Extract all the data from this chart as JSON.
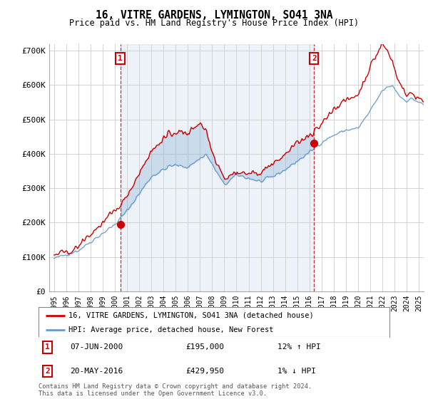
{
  "title": "16, VITRE GARDENS, LYMINGTON, SO41 3NA",
  "subtitle": "Price paid vs. HM Land Registry's House Price Index (HPI)",
  "legend_line1": "16, VITRE GARDENS, LYMINGTON, SO41 3NA (detached house)",
  "legend_line2": "HPI: Average price, detached house, New Forest",
  "annotation1_label": "1",
  "annotation1_date": "07-JUN-2000",
  "annotation1_price": "£195,000",
  "annotation1_hpi": "12% ↑ HPI",
  "annotation2_label": "2",
  "annotation2_date": "20-MAY-2016",
  "annotation2_price": "£429,950",
  "annotation2_hpi": "1% ↓ HPI",
  "footer": "Contains HM Land Registry data © Crown copyright and database right 2024.\nThis data is licensed under the Open Government Licence v3.0.",
  "red_color": "#cc0000",
  "blue_color": "#6699cc",
  "fill_color": "#ddeeff",
  "annotation_box_color": "#cc0000",
  "grid_color": "#cccccc",
  "background_color": "#ffffff",
  "plot_bg_color": "#ffffff",
  "ylim": [
    0,
    720000
  ],
  "yticks": [
    0,
    100000,
    200000,
    300000,
    400000,
    500000,
    600000,
    700000
  ],
  "ytick_labels": [
    "£0",
    "£100K",
    "£200K",
    "£300K",
    "£400K",
    "£500K",
    "£600K",
    "£700K"
  ],
  "sale1_x": 2000.44,
  "sale1_y": 195000,
  "sale2_x": 2016.38,
  "sale2_y": 429950,
  "vline1_x": 2000.44,
  "vline2_x": 2016.38,
  "xlim_left": 1994.6,
  "xlim_right": 2025.4
}
